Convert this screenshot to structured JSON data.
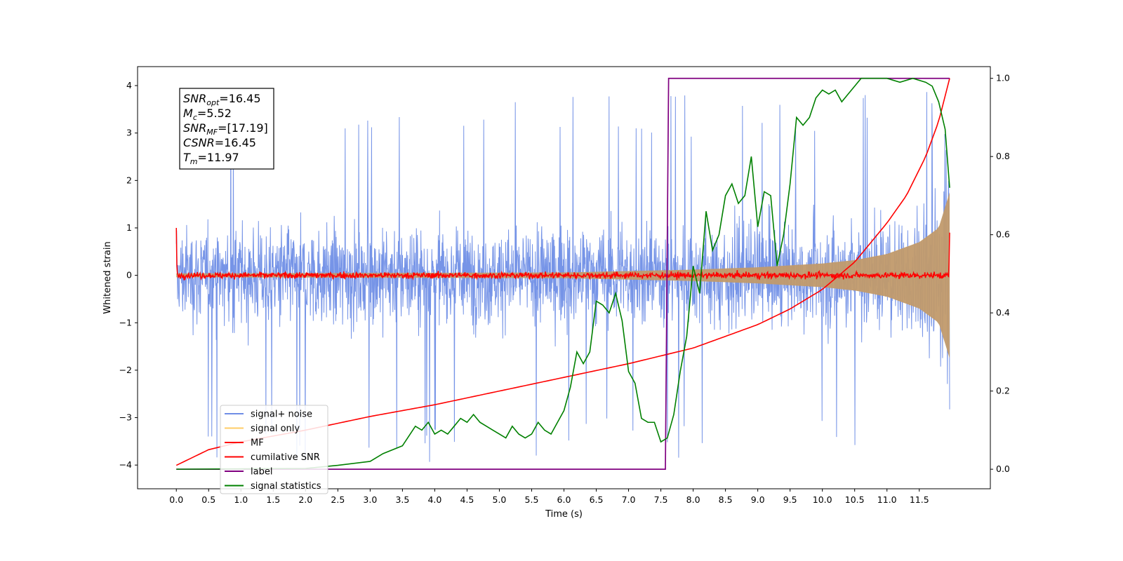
{
  "chart_data": {
    "type": "line",
    "xlabel": "Time (s)",
    "ylabel": "Whitened strain",
    "xlim": [
      -0.6,
      12.6
    ],
    "ylim": [
      -4.5,
      4.4
    ],
    "ylim_right": [
      -0.05,
      1.03
    ],
    "x_ticks": [
      "0.0",
      "0.5",
      "1.0",
      "1.5",
      "2.0",
      "2.5",
      "3.0",
      "3.5",
      "4.0",
      "4.5",
      "5.0",
      "5.5",
      "6.0",
      "6.5",
      "7.0",
      "7.5",
      "8.0",
      "8.5",
      "9.0",
      "9.5",
      "10.0",
      "10.5",
      "11.0",
      "11.5"
    ],
    "y_ticks": [
      "4",
      "3",
      "2",
      "1",
      "0",
      "−1",
      "−2",
      "−3",
      "−4"
    ],
    "y_ticks_right": [
      "1.0",
      "0.8",
      "0.6",
      "0.4",
      "0.2",
      "0.0"
    ],
    "grid": false,
    "legend_position": "lower-left",
    "legend": [
      {
        "label": "signal+ noise",
        "color": "#6f8ee6"
      },
      {
        "label": "signal only",
        "color": "#ffcc66"
      },
      {
        "label": "MF",
        "color": "#ff0000"
      },
      {
        "label": "cumilative SNR",
        "color": "#ff0000"
      },
      {
        "label": "label",
        "color": "#800080"
      },
      {
        "label": "signal statistics",
        "color": "#008000"
      }
    ],
    "annotation": {
      "lines": [
        {
          "main": "SNR",
          "sub": "opt",
          "value": "=16.45"
        },
        {
          "main": "M",
          "sub": "c",
          "value": "=5.52"
        },
        {
          "main": "SNR",
          "sub": "MF",
          "value": "=[17.19]"
        },
        {
          "main": "CSNR",
          "sub": "",
          "value": "=16.45"
        },
        {
          "main": "T",
          "sub": "m",
          "value": "=11.97"
        }
      ]
    },
    "series": [
      {
        "name": "signal+ noise",
        "axis": "left",
        "color": "#6f8ee6",
        "noise_band": [
          -2.4,
          2.1
        ],
        "peak_range": [
          -4.0,
          4.0
        ],
        "x_range": [
          0.0,
          11.97
        ]
      },
      {
        "name": "signal only",
        "axis": "left",
        "color": "#ffcc66",
        "envelope": {
          "x": [
            0.0,
            6.0,
            8.0,
            9.0,
            10.0,
            10.5,
            11.0,
            11.5,
            11.8,
            11.97
          ],
          "amp": [
            0.04,
            0.06,
            0.12,
            0.17,
            0.25,
            0.32,
            0.45,
            0.7,
            1.0,
            1.75
          ]
        }
      },
      {
        "name": "MF",
        "axis": "left",
        "color": "#ff0000",
        "start": 1.0,
        "noise_level": 0.05,
        "end": 0.9
      },
      {
        "name": "cumilative SNR",
        "axis": "right",
        "color": "#ff0000",
        "x": [
          0.0,
          0.5,
          1.0,
          2.0,
          3.0,
          4.0,
          5.0,
          6.0,
          7.0,
          7.5,
          8.0,
          8.5,
          9.0,
          9.5,
          10.0,
          10.5,
          11.0,
          11.3,
          11.6,
          11.8,
          11.97
        ],
        "y": [
          0.01,
          0.05,
          0.07,
          0.1,
          0.135,
          0.165,
          0.2,
          0.235,
          0.27,
          0.29,
          0.31,
          0.34,
          0.37,
          0.41,
          0.46,
          0.53,
          0.63,
          0.7,
          0.8,
          0.89,
          1.0
        ]
      },
      {
        "name": "label",
        "axis": "right",
        "color": "#800080",
        "x": [
          0.0,
          7.57,
          7.62,
          11.97
        ],
        "y": [
          0.0,
          0.0,
          1.0,
          1.0
        ]
      },
      {
        "name": "signal statistics",
        "axis": "right",
        "color": "#008000",
        "x": [
          0.0,
          2.0,
          2.5,
          3.0,
          3.2,
          3.5,
          3.7,
          3.8,
          3.9,
          4.0,
          4.1,
          4.2,
          4.3,
          4.4,
          4.5,
          4.6,
          4.7,
          4.8,
          4.9,
          5.0,
          5.1,
          5.2,
          5.3,
          5.4,
          5.5,
          5.6,
          5.7,
          5.8,
          5.9,
          6.0,
          6.1,
          6.2,
          6.3,
          6.4,
          6.5,
          6.6,
          6.7,
          6.8,
          6.9,
          7.0,
          7.1,
          7.2,
          7.3,
          7.4,
          7.5,
          7.6,
          7.7,
          7.8,
          7.9,
          8.0,
          8.1,
          8.2,
          8.3,
          8.4,
          8.5,
          8.6,
          8.7,
          8.8,
          8.9,
          9.0,
          9.1,
          9.2,
          9.3,
          9.4,
          9.5,
          9.6,
          9.7,
          9.8,
          9.9,
          10.0,
          10.1,
          10.2,
          10.3,
          10.4,
          10.5,
          10.6,
          10.8,
          11.0,
          11.2,
          11.4,
          11.6,
          11.7,
          11.8,
          11.9,
          11.97
        ],
        "y": [
          0.0,
          0.002,
          0.01,
          0.02,
          0.04,
          0.06,
          0.11,
          0.1,
          0.12,
          0.09,
          0.1,
          0.09,
          0.11,
          0.13,
          0.12,
          0.14,
          0.12,
          0.11,
          0.1,
          0.09,
          0.08,
          0.11,
          0.09,
          0.08,
          0.09,
          0.12,
          0.1,
          0.09,
          0.12,
          0.15,
          0.21,
          0.3,
          0.27,
          0.3,
          0.43,
          0.42,
          0.4,
          0.45,
          0.38,
          0.25,
          0.22,
          0.13,
          0.12,
          0.12,
          0.07,
          0.08,
          0.14,
          0.25,
          0.34,
          0.52,
          0.45,
          0.66,
          0.56,
          0.6,
          0.7,
          0.73,
          0.68,
          0.7,
          0.8,
          0.62,
          0.71,
          0.7,
          0.52,
          0.6,
          0.73,
          0.9,
          0.88,
          0.9,
          0.95,
          0.97,
          0.96,
          0.97,
          0.94,
          0.96,
          0.98,
          1.0,
          1.0,
          1.0,
          0.99,
          1.0,
          0.99,
          0.98,
          0.94,
          0.87,
          0.72
        ]
      }
    ]
  }
}
